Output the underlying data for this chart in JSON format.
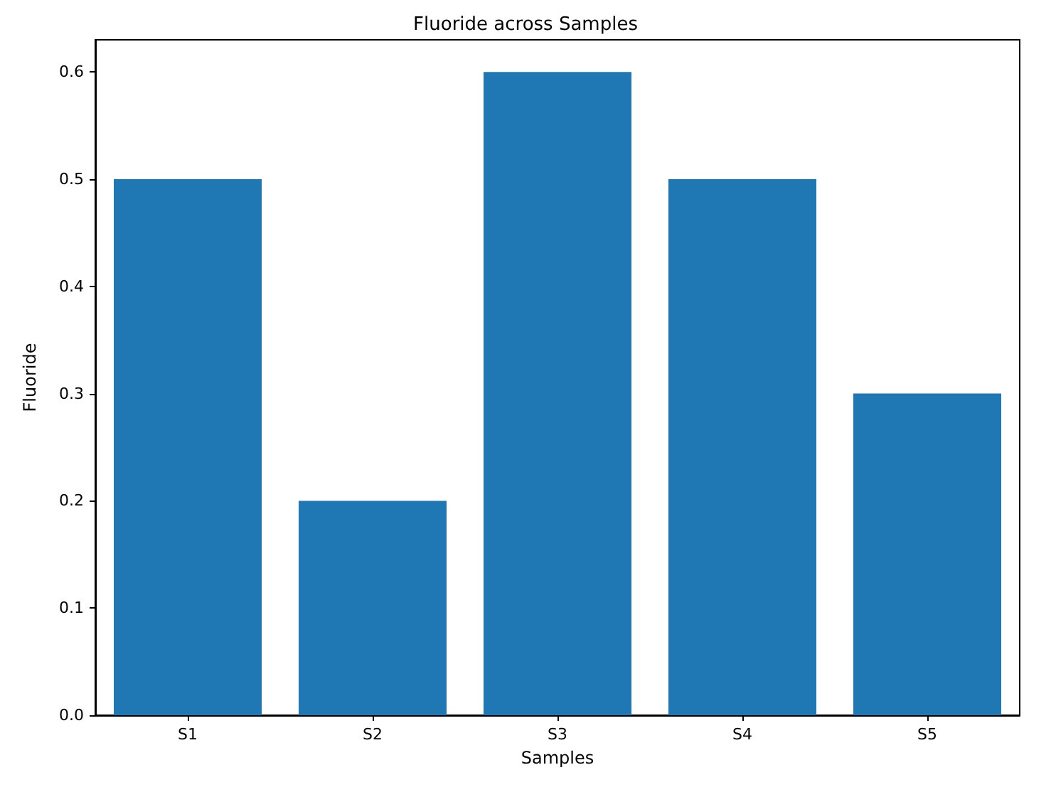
{
  "chart_data": {
    "type": "bar",
    "title": "Fluoride across Samples",
    "xlabel": "Samples",
    "ylabel": "Fluoride",
    "categories": [
      "S1",
      "S2",
      "S3",
      "S4",
      "S5"
    ],
    "values": [
      0.5,
      0.2,
      0.6,
      0.5,
      0.3
    ],
    "color": "#1f77b4",
    "ylim": [
      0,
      0.63
    ],
    "yticks": [
      {
        "value": 0,
        "label": "0.0"
      },
      0.1,
      0.2,
      0.3,
      0.4,
      0.5,
      0.6
    ],
    "grid": false
  }
}
